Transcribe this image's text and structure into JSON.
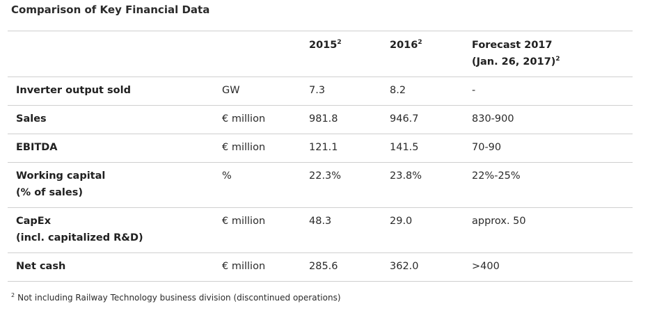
{
  "title": "Comparison of Key Financial Data",
  "header": {
    "label": "",
    "unit": "",
    "col_2015": "2015",
    "col_2015_note": "2",
    "col_2016": "2016",
    "col_2016_note": "2",
    "forecast_line1": "Forecast 2017",
    "forecast_line2": "(Jan. 26, 2017)",
    "forecast_note": "2"
  },
  "rows": [
    {
      "label": "Inverter output sold",
      "label2": "",
      "unit": "GW",
      "v2015": "7.3",
      "v2016": "8.2",
      "forecast": "-"
    },
    {
      "label": "Sales",
      "label2": "",
      "unit": "€ million",
      "v2015": "981.8",
      "v2016": "946.7",
      "forecast": "830-900"
    },
    {
      "label": "EBITDA",
      "label2": "",
      "unit": "€ million",
      "v2015": "121.1",
      "v2016": "141.5",
      "forecast": "70-90"
    },
    {
      "label": "Working capital",
      "label2": "(% of sales)",
      "unit": "%",
      "v2015": "22.3%",
      "v2016": "23.8%",
      "forecast": "22%-25%"
    },
    {
      "label": "CapEx",
      "label2": "(incl. capitalized R&D)",
      "unit": "€ million",
      "v2015": "48.3",
      "v2016": "29.0",
      "forecast": "approx. 50"
    },
    {
      "label": "Net cash",
      "label2": "",
      "unit": "€ million",
      "v2015": "285.6",
      "v2016": "362.0",
      "forecast": ">400"
    }
  ],
  "footnote": {
    "marker": "2",
    "text": "Not including Railway Technology business division (discontinued operations)"
  }
}
